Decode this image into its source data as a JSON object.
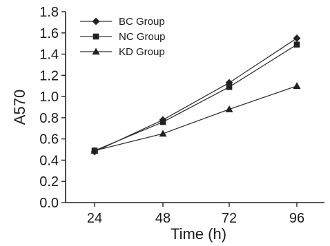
{
  "chart_data": {
    "type": "line",
    "title": "",
    "xlabel": "Time (h)",
    "ylabel": "A570",
    "x": [
      24,
      48,
      72,
      96
    ],
    "x_tick_labels": [
      "24",
      "48",
      "72",
      "96"
    ],
    "ylim": [
      0.0,
      1.8
    ],
    "y_ticks": [
      0.0,
      0.2,
      0.4,
      0.6,
      0.8,
      1.0,
      1.2,
      1.4,
      1.6,
      1.8
    ],
    "y_tick_labels": [
      "0.0",
      "0.2",
      "0.4",
      "0.6",
      "0.8",
      "1.0",
      "1.2",
      "1.4",
      "1.6",
      "1.8"
    ],
    "grid": false,
    "legend_position": "top-left",
    "series": [
      {
        "name": "BC Group",
        "marker": "diamond",
        "values": [
          0.48,
          0.78,
          1.13,
          1.55
        ]
      },
      {
        "name": "NC Group",
        "marker": "square",
        "values": [
          0.49,
          0.76,
          1.09,
          1.49
        ]
      },
      {
        "name": "KD Group",
        "marker": "triangle",
        "values": [
          0.49,
          0.65,
          0.88,
          1.1
        ]
      }
    ]
  }
}
